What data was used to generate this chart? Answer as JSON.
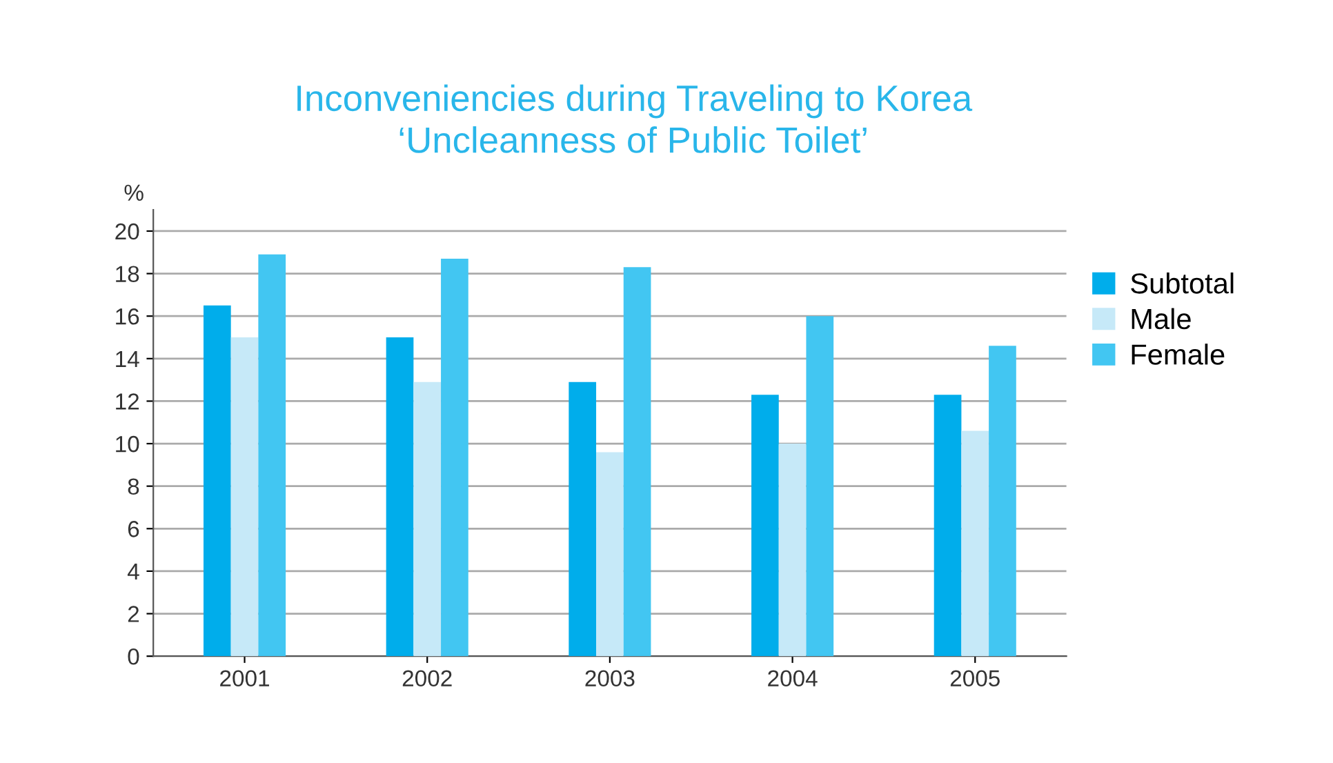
{
  "chart_data": {
    "type": "bar",
    "title": "Inconveniencies during Traveling to Korea\n‘Uncleanness of Public Toilet’",
    "ylabel": "%",
    "categories": [
      "2001",
      "2002",
      "2003",
      "2004",
      "2005"
    ],
    "series": [
      {
        "name": "Subtotal",
        "color": "#00adeb",
        "values": [
          16.5,
          15.0,
          12.9,
          12.3,
          12.3
        ]
      },
      {
        "name": "Male",
        "color": "#c6e9f8",
        "values": [
          15.0,
          12.9,
          9.6,
          10.0,
          10.6
        ]
      },
      {
        "name": "Female",
        "color": "#42c6f2",
        "values": [
          18.9,
          18.7,
          18.3,
          16.0,
          14.6
        ]
      }
    ],
    "ylim": [
      0,
      21
    ],
    "yticks": [
      0,
      2,
      4,
      6,
      8,
      10,
      12,
      14,
      16,
      18,
      20
    ],
    "grid": "y",
    "legend": "right"
  }
}
